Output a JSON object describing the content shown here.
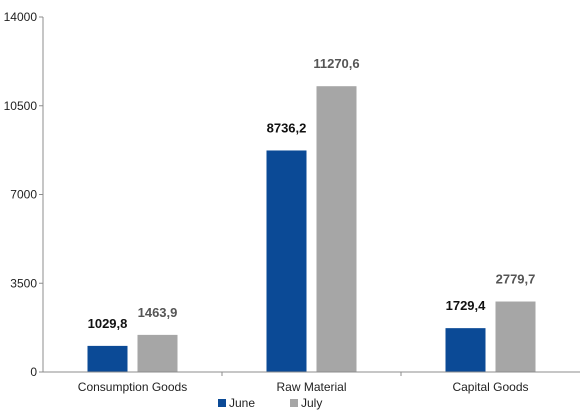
{
  "chart_data": {
    "type": "bar",
    "categories": [
      "Consumption Goods",
      "Raw Material",
      "Capital Goods"
    ],
    "series": [
      {
        "name": "June",
        "values": [
          1029.8,
          8736.2,
          1729.4
        ],
        "labels": [
          "1029,8",
          "8736,2",
          "1729,4"
        ],
        "color": "#0B4A96",
        "label_color": "#111111"
      },
      {
        "name": "July",
        "values": [
          1463.9,
          11270.6,
          2779.7
        ],
        "labels": [
          "1463,9",
          "11270,6",
          "2779,7"
        ],
        "color": "#A6A6A6",
        "label_color": "#555555"
      }
    ],
    "y_ticks": [
      "0",
      "3500",
      "7000",
      "10500",
      "14000"
    ],
    "ylim": [
      0,
      14000
    ],
    "grid": false,
    "legend_position": "bottom-center"
  }
}
